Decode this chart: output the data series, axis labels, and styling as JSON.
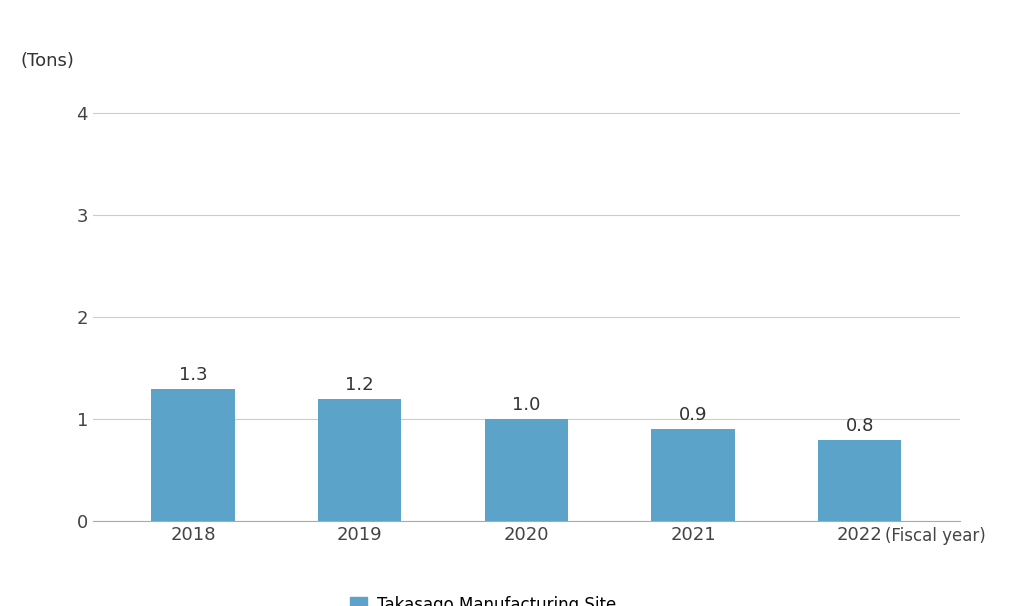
{
  "categories": [
    "2018",
    "2019",
    "2020",
    "2021",
    "2022"
  ],
  "values": [
    1.3,
    1.2,
    1.0,
    0.9,
    0.8
  ],
  "bar_color": "#5BA3C9",
  "ylabel_topleft": "(Tons)",
  "xlabel_right": "(Fiscal year)",
  "ylim": [
    0,
    4.4
  ],
  "yticks": [
    0,
    1,
    2,
    3,
    4
  ],
  "legend_label": "Takasago Manufacturing Site",
  "legend_color": "#5BA3C9",
  "background_color": "#ffffff",
  "bar_width": 0.5,
  "tick_fontsize": 13,
  "annotation_fontsize": 13,
  "ylabel_fontsize": 13,
  "xlabel_right_fontsize": 12,
  "legend_fontsize": 12,
  "grid_color": "#cccccc"
}
